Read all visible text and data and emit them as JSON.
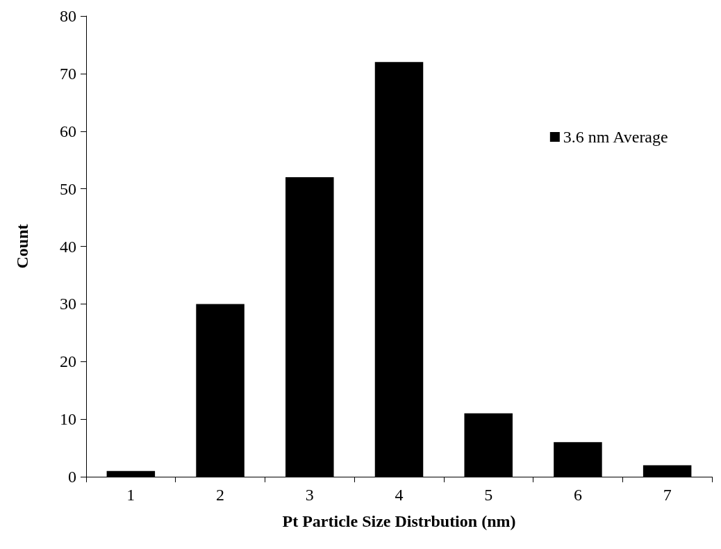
{
  "chart_data": {
    "type": "bar",
    "xlabel": "Pt Particle Size Distrbution (nm)",
    "ylabel": "Count",
    "categories": [
      "1",
      "2",
      "3",
      "4",
      "5",
      "6",
      "7"
    ],
    "series": [
      {
        "name": "3.6 nm Average",
        "color": "#000000",
        "values": [
          1,
          30,
          52,
          72,
          11,
          6,
          2
        ]
      }
    ],
    "ylim": [
      0,
      80
    ],
    "yticks": [
      0,
      10,
      20,
      30,
      40,
      50,
      60,
      70,
      80
    ],
    "grid": false,
    "legend": "top right"
  }
}
